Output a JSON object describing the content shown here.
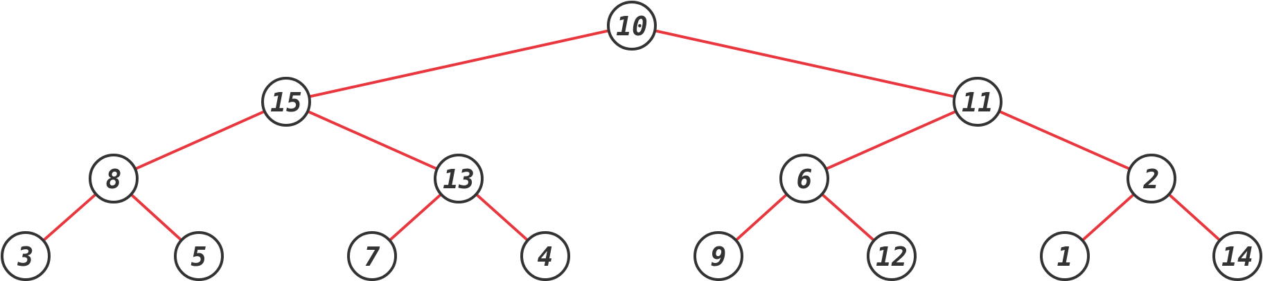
{
  "tree": {
    "nodes": [
      {
        "id": "n10",
        "label": "10"
      },
      {
        "id": "n15",
        "label": "15"
      },
      {
        "id": "n11",
        "label": "11"
      },
      {
        "id": "n8",
        "label": "8"
      },
      {
        "id": "n13",
        "label": "13"
      },
      {
        "id": "n6",
        "label": "6"
      },
      {
        "id": "n2",
        "label": "2"
      },
      {
        "id": "n3",
        "label": "3"
      },
      {
        "id": "n5",
        "label": "5"
      },
      {
        "id": "n7",
        "label": "7"
      },
      {
        "id": "n4",
        "label": "4"
      },
      {
        "id": "n9",
        "label": "9"
      },
      {
        "id": "n12",
        "label": "12"
      },
      {
        "id": "n1",
        "label": "1"
      },
      {
        "id": "n14",
        "label": "14"
      }
    ],
    "edges": [
      [
        "n10",
        "n15"
      ],
      [
        "n10",
        "n11"
      ],
      [
        "n15",
        "n8"
      ],
      [
        "n15",
        "n13"
      ],
      [
        "n11",
        "n6"
      ],
      [
        "n11",
        "n2"
      ],
      [
        "n8",
        "n3"
      ],
      [
        "n8",
        "n5"
      ],
      [
        "n13",
        "n7"
      ],
      [
        "n13",
        "n4"
      ],
      [
        "n6",
        "n9"
      ],
      [
        "n6",
        "n12"
      ],
      [
        "n2",
        "n1"
      ],
      [
        "n2",
        "n14"
      ]
    ],
    "colors": {
      "edge": "#e8373e",
      "node_stroke": "#333333",
      "node_fill": "#ffffff",
      "label": "#333333"
    }
  }
}
